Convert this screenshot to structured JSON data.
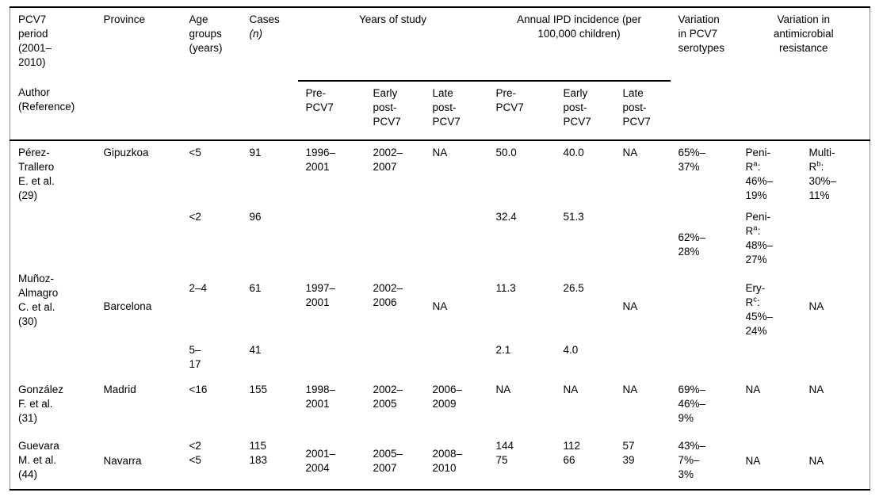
{
  "header": {
    "col1_top": "PCV7\nperiod\n(2001–\n2010)",
    "col1_bottom": "Author\n(Reference)",
    "province": "Province",
    "age": "Age\ngroups\n(years)",
    "cases_label": "Cases",
    "cases_unit": "(n)",
    "years_group": "Years of study",
    "ipd_group": "Annual IPD incidence (per\n100,000 children)",
    "serotypes_group": "Variation\nin PCV7\nserotypes",
    "amr_group": "Variation in\nantimicrobial\nresistance",
    "sub_pre": "Pre-\nPCV7",
    "sub_early": "Early\npost-\nPCV7",
    "sub_late": "Late\npost-\nPCV7"
  },
  "studies": {
    "perez": {
      "author": "Pérez-\nTrallero\nE. et al.\n(29)",
      "province": "Gipuzkoa",
      "age": "<5",
      "cases": "91",
      "y_pre": "1996–\n2001",
      "y_early": "2002–\n2007",
      "y_late": "NA",
      "i_pre": "50.0",
      "i_early": "40.0",
      "i_late": "NA",
      "sero": "65%–\n37%",
      "amr1": "Peni-\nR^a:\n46%–\n19%",
      "amr2": "Multi-\nR^b:\n30%–\n11%"
    },
    "munoz": {
      "author": "Muñoz-\nAlmagro\nC. et al.\n(30)",
      "province": "Barcelona",
      "r1": {
        "age": "<2",
        "cases": "96",
        "i_pre": "32.4",
        "i_early": "51.3",
        "sero": "62%–\n28%",
        "amr1": "Peni-\nR^a:\n48%–\n27%"
      },
      "r2": {
        "age": "2–4",
        "cases": "61",
        "y_pre": "1997–\n2001",
        "y_early": "2002–\n2006",
        "y_late": "NA",
        "i_pre": "11.3",
        "i_early": "26.5",
        "i_late": "NA",
        "amr1": "Ery-\nR^c:\n45%–\n24%",
        "amr2": "NA"
      },
      "r3": {
        "age": "5–\n17",
        "cases": "41",
        "i_pre": "2.1",
        "i_early": "4.0"
      }
    },
    "gonzalez": {
      "author": "González\nF. et al.\n(31)",
      "province": "Madrid",
      "age": "<16",
      "cases": "155",
      "y_pre": "1998–\n2001",
      "y_early": "2002–\n2005",
      "y_late": "2006–\n2009",
      "i_pre": "NA",
      "i_early": "NA",
      "i_late": "NA",
      "sero": "69%–\n46%–\n9%",
      "amr1": "NA",
      "amr2": "NA"
    },
    "guevara": {
      "author": "Guevara\nM. et al.\n(44)",
      "province": "Navarra",
      "age": "<2\n<5",
      "cases": "115\n183",
      "y_pre": "2001–\n2004",
      "y_early": "2005–\n2007",
      "y_late": "2008–\n2010",
      "i_pre": "144\n75",
      "i_early": "112\n66",
      "i_late": "57\n39",
      "sero": "43%–\n7%–\n3%",
      "amr1": "NA",
      "amr2": "NA"
    }
  }
}
